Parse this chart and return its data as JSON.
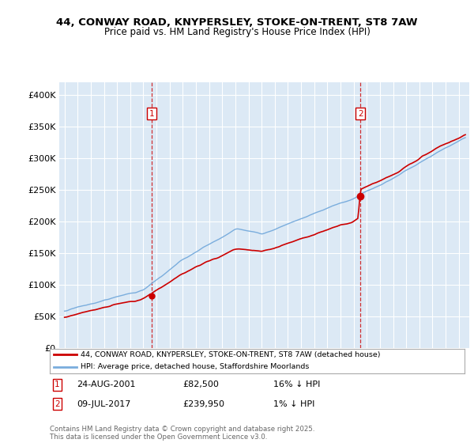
{
  "title1": "44, CONWAY ROAD, KNYPERSLEY, STOKE-ON-TRENT, ST8 7AW",
  "title2": "Price paid vs. HM Land Registry's House Price Index (HPI)",
  "ytick_vals": [
    0,
    50000,
    100000,
    150000,
    200000,
    250000,
    300000,
    350000,
    400000
  ],
  "hpi_color": "#7aaddd",
  "price_color": "#cc0000",
  "marker1_x": 2001.63,
  "marker1_price": 82500,
  "marker1_date": "24-AUG-2001",
  "marker1_label": "16% ↓ HPI",
  "marker2_x": 2017.52,
  "marker2_price": 239950,
  "marker2_date": "09-JUL-2017",
  "marker2_label": "1% ↓ HPI",
  "legend_line1": "44, CONWAY ROAD, KNYPERSLEY, STOKE-ON-TRENT, ST8 7AW (detached house)",
  "legend_line2": "HPI: Average price, detached house, Staffordshire Moorlands",
  "footer": "Contains HM Land Registry data © Crown copyright and database right 2025.\nThis data is licensed under the Open Government Licence v3.0.",
  "plot_bg_color": "#dce9f5",
  "xlim_left": 1994.6,
  "xlim_right": 2025.8,
  "ylim_top": 420000,
  "seed": 17
}
